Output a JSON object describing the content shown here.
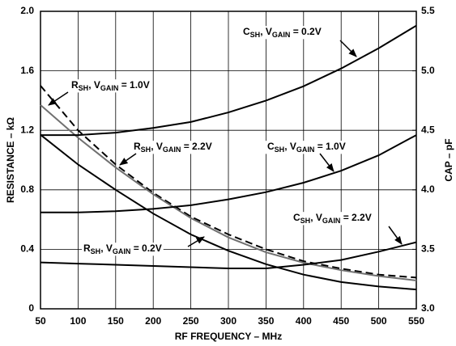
{
  "chart_data": {
    "type": "line",
    "xlabel": "RF FREQUENCY – MHz",
    "ylabel": "RESISTANCE – kΩ",
    "y2label": "CAP – pF",
    "x": [
      50,
      100,
      150,
      200,
      250,
      300,
      350,
      400,
      450,
      500,
      550
    ],
    "xlim": [
      50,
      550
    ],
    "xticks": [
      50,
      100,
      150,
      200,
      250,
      300,
      350,
      400,
      450,
      500,
      550
    ],
    "ylim": [
      0,
      2
    ],
    "yticks": [
      0,
      0.4,
      0.8,
      1.2,
      1.6,
      {
        "value": 2,
        "label": "2.0"
      }
    ],
    "y2lim": [
      3,
      5.5
    ],
    "y2ticks": [
      {
        "value": 3,
        "label": "3.0"
      },
      3.5,
      {
        "value": 4,
        "label": "4.0"
      },
      4.5,
      {
        "value": 5,
        "label": "5.0"
      },
      5.5
    ],
    "grid": true,
    "series": [
      {
        "name": [
          "R",
          "SH",
          ", V",
          "GAIN",
          " = 1.0V"
        ],
        "color": "#000000",
        "dash": true,
        "values": [
          1.5,
          1.2,
          0.97,
          0.78,
          0.62,
          0.5,
          0.4,
          0.32,
          0.27,
          0.23,
          0.21
        ]
      },
      {
        "name": [
          "R",
          "SH",
          ", V",
          "GAIN",
          " = 2.2V"
        ],
        "color": "#707070",
        "dash": false,
        "values": [
          1.37,
          1.15,
          0.95,
          0.77,
          0.61,
          0.48,
          0.38,
          0.31,
          0.26,
          0.22,
          0.19
        ]
      },
      {
        "name": [
          "R",
          "SH",
          ", V",
          "GAIN",
          " = 0.2V"
        ],
        "color": "#000000",
        "dash": false,
        "values": [
          1.17,
          0.97,
          0.8,
          0.64,
          0.5,
          0.39,
          0.3,
          0.23,
          0.18,
          0.15,
          0.13
        ]
      },
      {
        "name": [
          "C",
          "SH",
          ", V",
          "GAIN",
          " = 0.2V"
        ],
        "color": "#000000",
        "dash": false,
        "axis": "y2",
        "values": [
          4.46,
          4.46,
          4.48,
          4.52,
          4.57,
          4.65,
          4.75,
          4.87,
          5.02,
          5.19,
          5.38
        ]
      },
      {
        "name": [
          "C",
          "SH",
          ", V",
          "GAIN",
          " = 1.0V"
        ],
        "color": "#000000",
        "dash": false,
        "axis": "y2",
        "values": [
          3.81,
          3.81,
          3.82,
          3.84,
          3.87,
          3.92,
          3.98,
          4.06,
          4.16,
          4.29,
          4.46
        ]
      },
      {
        "name": [
          "C",
          "SH",
          ", V",
          "GAIN",
          " = 2.2V"
        ],
        "color": "#000000",
        "dash": false,
        "axis": "y2",
        "values": [
          3.39,
          3.38,
          3.37,
          3.36,
          3.35,
          3.34,
          3.34,
          3.37,
          3.41,
          3.48,
          3.56
        ]
      }
    ]
  }
}
